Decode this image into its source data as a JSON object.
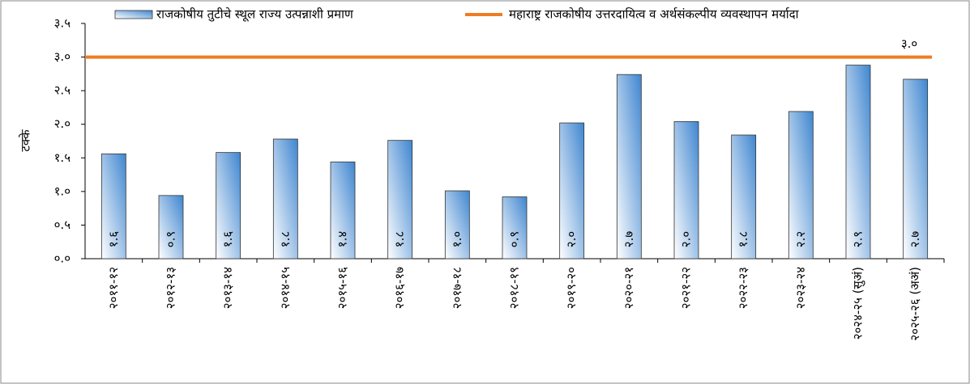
{
  "chart_data": {
    "type": "bar",
    "y_label": "टक्के",
    "series_name": "राजकोषीय तुटीचे स्थूल राज्य उत्पन्नाशी प्रमाण",
    "color": "#3f86d0",
    "categories": [
      "२०११-१२",
      "२०१२-१३",
      "२०१३-१४",
      "२०१४-१५",
      "२०१५-१६",
      "२०१६-१७",
      "२०१७-१८",
      "२०१८-१९",
      "२०१९-२०",
      "२०२०-२१",
      "२०२१-२२",
      "२०२२-२३",
      "२०२३-२४",
      "२०२४-२५ (सुअं)",
      "२०२५-२६ (अअं)"
    ],
    "values": [
      1.56,
      0.94,
      1.58,
      1.78,
      1.44,
      1.76,
      1.01,
      0.92,
      2.02,
      2.74,
      2.04,
      1.84,
      2.19,
      2.88,
      2.67
    ],
    "value_labels": [
      "१.६",
      "०.९",
      "१.६",
      "१.८",
      "१.४",
      "१.८",
      "१.०",
      "०.९",
      "२.०",
      "२.७",
      "२.०",
      "१.८",
      "२.२",
      "२.९",
      "२.७"
    ],
    "ylim": [
      0,
      3.5
    ],
    "yticks": [
      {
        "value": 0,
        "label": "०.०"
      },
      {
        "value": 0.5,
        "label": "०.५"
      },
      {
        "value": 1,
        "label": "१.०"
      },
      {
        "value": 1.5,
        "label": "१.५"
      },
      {
        "value": 2,
        "label": "२.०"
      },
      {
        "value": 2.5,
        "label": "२.५"
      },
      {
        "value": 3,
        "label": "३.०"
      },
      {
        "value": 3.5,
        "label": "३.५"
      }
    ],
    "reference_line": {
      "name": "महाराष्ट्र राजकोषीय उत्तरदायित्व व अर्थसंकल्पीय व्यवस्थापन मर्यादा",
      "value": 3,
      "label": "३.०",
      "color": "#f07c22"
    }
  }
}
